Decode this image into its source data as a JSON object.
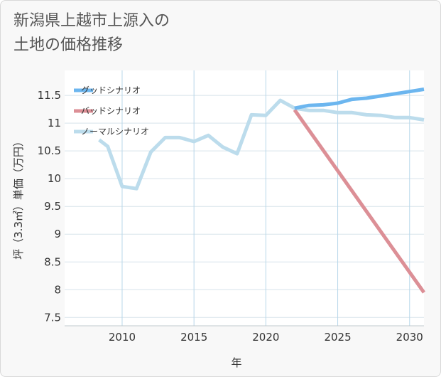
{
  "title_line1": "新潟県上越市上源入の",
  "title_line2": "土地の価格推移",
  "chart_data": {
    "type": "line",
    "xlabel": "年",
    "ylabel": "坪（3.3㎡）単価（万円）",
    "xlim": [
      2006,
      2031
    ],
    "ylim": [
      7.35,
      11.95
    ],
    "xticks": [
      2010,
      2015,
      2020,
      2025,
      2030
    ],
    "yticks": [
      7.5,
      8,
      8.5,
      9,
      9.5,
      10,
      10.5,
      11,
      11.5
    ],
    "grid": true,
    "legend_position": "top-left",
    "series": [
      {
        "name": "グッドシナリオ",
        "color": "#6cb6ef",
        "x": [
          2022,
          2023,
          2024,
          2025,
          2026,
          2027,
          2028,
          2029,
          2030,
          2031
        ],
        "y": [
          11.27,
          11.32,
          11.33,
          11.36,
          11.43,
          11.45,
          11.49,
          11.53,
          11.57,
          11.61
        ]
      },
      {
        "name": "バッドシナリオ",
        "color": "#dc8f96",
        "x": [
          2022,
          2031
        ],
        "y": [
          11.24,
          7.95
        ]
      },
      {
        "name": "ノーマルシナリオ",
        "color": "#bcdcec",
        "x": [
          2008.4,
          2009,
          2010,
          2011,
          2012,
          2013,
          2014,
          2015,
          2016,
          2017,
          2018,
          2019,
          2020,
          2021,
          2022,
          2023,
          2024,
          2025,
          2026,
          2027,
          2028,
          2029,
          2030,
          2031
        ],
        "y": [
          10.7,
          10.58,
          9.86,
          9.82,
          10.48,
          10.74,
          10.74,
          10.67,
          10.78,
          10.57,
          10.45,
          11.15,
          11.14,
          11.41,
          11.27,
          11.23,
          11.23,
          11.19,
          11.19,
          11.15,
          11.14,
          11.1,
          11.1,
          11.06
        ]
      }
    ]
  }
}
